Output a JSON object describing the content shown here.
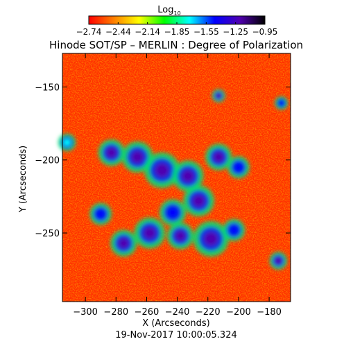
{
  "chart_data": {
    "type": "heatmap",
    "title": "Hinode SOT/SP – MERLIN : Degree of Polarization",
    "colorbar": {
      "label_base": "Log",
      "label_sub": "10",
      "ticks": [
        "−2.74",
        "−2.44",
        "−2.14",
        "−1.85",
        "−1.55",
        "−1.25",
        "−0.95"
      ],
      "range": [
        -2.74,
        -0.95
      ],
      "colormap": [
        "#ff0000",
        "#ff8000",
        "#ffff00",
        "#00ff00",
        "#00ffff",
        "#0000ff",
        "#5000b0",
        "#000000"
      ]
    },
    "xlabel": "X (Arcseconds)",
    "ylabel": "Y (Arcseconds)",
    "x_ticks": [
      "−300",
      "−280",
      "−260",
      "−240",
      "−220",
      "−200",
      "−180"
    ],
    "y_ticks": [
      "−150",
      "−200",
      "−250"
    ],
    "x_tick_values": [
      -300,
      -280,
      -260,
      -240,
      -220,
      -200,
      -180
    ],
    "y_tick_values": [
      -150,
      -200,
      -250
    ],
    "xlim": [
      -315,
      -166
    ],
    "ylim": [
      -297,
      -127
    ],
    "background_value": -2.7,
    "active_regions": [
      {
        "x": -283,
        "y": -195,
        "r": 6,
        "value": -1.1
      },
      {
        "x": -266,
        "y": -198,
        "r": 7,
        "value": -1.15
      },
      {
        "x": -250,
        "y": -207,
        "r": 8,
        "value": -1.2
      },
      {
        "x": -233,
        "y": -211,
        "r": 7,
        "value": -1.1
      },
      {
        "x": -213,
        "y": -198,
        "r": 6,
        "value": -1.3
      },
      {
        "x": -200,
        "y": -205,
        "r": 5,
        "value": -1.4
      },
      {
        "x": -226,
        "y": -228,
        "r": 7,
        "value": -1.2
      },
      {
        "x": -243,
        "y": -236,
        "r": 6,
        "value": -1.4
      },
      {
        "x": -258,
        "y": -250,
        "r": 7,
        "value": -1.25
      },
      {
        "x": -238,
        "y": -252,
        "r": 6,
        "value": -1.3
      },
      {
        "x": -218,
        "y": -254,
        "r": 8,
        "value": -1.1
      },
      {
        "x": -203,
        "y": -248,
        "r": 5,
        "value": -1.4
      },
      {
        "x": -290,
        "y": -237,
        "r": 5,
        "value": -1.5
      },
      {
        "x": -275,
        "y": -257,
        "r": 6,
        "value": -1.3
      },
      {
        "x": -213,
        "y": -156,
        "r": 3,
        "value": -1.2
      },
      {
        "x": -174,
        "y": -269,
        "r": 4,
        "value": -1.3
      },
      {
        "x": -172,
        "y": -161,
        "r": 3,
        "value": -1.5
      },
      {
        "x": -312,
        "y": -188,
        "r": 4,
        "value": -1.8
      }
    ]
  },
  "timestamp": "19-Nov-2017 10:00:05.324"
}
